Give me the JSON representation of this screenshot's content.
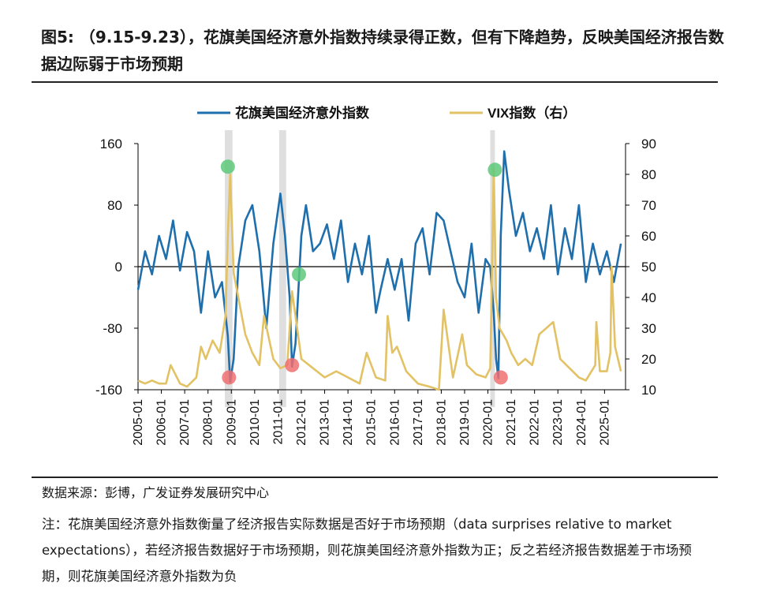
{
  "figure": {
    "title_prefix": "图5:",
    "title_text": "（9.15-9.23），花旗美国经济意外指数持续录得正数，但有下降趋势，反映美国经济报告数据边际弱于市场预期"
  },
  "footer": {
    "source": "数据来源：彭博，广发证券发展研究中心",
    "note": "注：花旗美国经济意外指数衡量了经济报告实际数据是否好于市场预期（data surprises relative to market expectations），若经济报告数据好于市场预期，则花旗美国经济意外指数为正；反之若经济报告数据差于市场预期，则花旗美国经济意外指数为负"
  },
  "chart_data": {
    "type": "line",
    "title": "",
    "xlabel": "",
    "ylabel": "",
    "y2label": "",
    "categories": [
      "2005-01",
      "2006-01",
      "2007-01",
      "2008-01",
      "2009-01",
      "2010-01",
      "2011-01",
      "2012-01",
      "2013-01",
      "2014-01",
      "2015-01",
      "2016-01",
      "2017-01",
      "2018-01",
      "2019-01",
      "2020-01",
      "2021-01",
      "2022-01",
      "2023-01",
      "2024-01",
      "2025-01"
    ],
    "ylim": [
      -160,
      160
    ],
    "yticks": [
      "160",
      "80",
      "0",
      "-80",
      "-160"
    ],
    "y2lim": [
      10,
      90
    ],
    "y2ticks": [
      "90",
      "80",
      "70",
      "60",
      "50",
      "40",
      "30",
      "20",
      "10"
    ],
    "grid": false,
    "legend_position": "top",
    "series": [
      {
        "name": "花旗美国经济意外指数",
        "axis": "left",
        "color": "#1f6fad",
        "x": [
          2005.0,
          2005.3,
          2005.6,
          2005.9,
          2006.2,
          2006.5,
          2006.8,
          2007.1,
          2007.4,
          2007.7,
          2008.0,
          2008.3,
          2008.6,
          2008.85,
          2008.95,
          2009.1,
          2009.3,
          2009.6,
          2009.9,
          2010.2,
          2010.5,
          2010.8,
          2011.1,
          2011.3,
          2011.5,
          2011.6,
          2011.75,
          2012.0,
          2012.2,
          2012.5,
          2012.8,
          2013.1,
          2013.4,
          2013.7,
          2014.0,
          2014.3,
          2014.6,
          2014.9,
          2015.2,
          2015.4,
          2015.7,
          2016.0,
          2016.3,
          2016.6,
          2016.9,
          2017.2,
          2017.5,
          2017.8,
          2018.1,
          2018.4,
          2018.7,
          2019.0,
          2019.3,
          2019.6,
          2019.9,
          2020.1,
          2020.25,
          2020.35,
          2020.45,
          2020.55,
          2020.7,
          2020.9,
          2021.2,
          2021.5,
          2021.8,
          2022.1,
          2022.4,
          2022.7,
          2023.0,
          2023.3,
          2023.6,
          2023.9,
          2024.2,
          2024.5,
          2024.8,
          2025.1,
          2025.4,
          2025.7
        ],
        "values": [
          -30,
          20,
          -10,
          40,
          10,
          60,
          -5,
          45,
          20,
          -60,
          20,
          -40,
          -20,
          -90,
          -150,
          -120,
          0,
          60,
          80,
          20,
          -80,
          30,
          95,
          40,
          -40,
          -130,
          -100,
          40,
          80,
          20,
          30,
          55,
          10,
          60,
          -20,
          30,
          -10,
          40,
          -60,
          -30,
          10,
          -30,
          10,
          -70,
          30,
          50,
          -10,
          70,
          60,
          20,
          -20,
          -40,
          30,
          -60,
          10,
          0,
          -60,
          -120,
          -145,
          40,
          150,
          100,
          40,
          70,
          20,
          50,
          10,
          80,
          -10,
          50,
          10,
          80,
          -20,
          30,
          -10,
          20,
          -20,
          30
        ]
      },
      {
        "name": "VIX指数（右）",
        "axis": "right",
        "color": "#e2c264",
        "x": [
          2005.0,
          2005.3,
          2005.6,
          2005.9,
          2006.2,
          2006.4,
          2006.8,
          2007.1,
          2007.5,
          2007.7,
          2007.9,
          2008.2,
          2008.5,
          2008.75,
          2008.85,
          2008.95,
          2009.1,
          2009.3,
          2009.6,
          2009.9,
          2010.2,
          2010.4,
          2010.8,
          2011.1,
          2011.4,
          2011.6,
          2011.75,
          2012.0,
          2012.5,
          2013.0,
          2013.5,
          2014.0,
          2014.5,
          2014.8,
          2015.2,
          2015.6,
          2015.7,
          2015.9,
          2016.1,
          2016.5,
          2017.0,
          2017.5,
          2017.9,
          2018.1,
          2018.5,
          2018.9,
          2019.1,
          2019.5,
          2019.9,
          2020.1,
          2020.2,
          2020.25,
          2020.35,
          2020.5,
          2020.8,
          2021.0,
          2021.3,
          2021.6,
          2021.9,
          2022.2,
          2022.5,
          2022.8,
          2023.1,
          2023.5,
          2023.9,
          2024.2,
          2024.6,
          2024.65,
          2024.8,
          2025.1,
          2025.25,
          2025.3,
          2025.45,
          2025.7
        ],
        "values": [
          13,
          12,
          13,
          12,
          12,
          18,
          12,
          11,
          14,
          24,
          20,
          26,
          22,
          34,
          60,
          80,
          48,
          40,
          28,
          22,
          18,
          34,
          20,
          17,
          18,
          42,
          34,
          20,
          17,
          14,
          16,
          14,
          12,
          22,
          14,
          13,
          34,
          22,
          24,
          16,
          12,
          11,
          10,
          36,
          14,
          28,
          18,
          15,
          14,
          17,
          60,
          82,
          40,
          30,
          26,
          22,
          18,
          20,
          18,
          28,
          30,
          32,
          20,
          17,
          14,
          13,
          18,
          32,
          16,
          16,
          22,
          50,
          24,
          16
        ]
      }
    ],
    "shaded_periods": [
      {
        "start": 2008.72,
        "end": 2009.05
      },
      {
        "start": 2011.05,
        "end": 2011.35
      },
      {
        "start": 2020.1,
        "end": 2020.3
      }
    ],
    "markers": [
      {
        "x": 2008.85,
        "y": 130,
        "axis": "left",
        "color": "#5ec97a"
      },
      {
        "x": 2008.9,
        "y": -144,
        "axis": "left",
        "color": "#f07070"
      },
      {
        "x": 2011.6,
        "y": -128,
        "axis": "left",
        "color": "#f07070"
      },
      {
        "x": 2011.9,
        "y": -10,
        "axis": "left",
        "color": "#5ec97a"
      },
      {
        "x": 2020.3,
        "y": 126,
        "axis": "left",
        "color": "#5ec97a"
      },
      {
        "x": 2020.55,
        "y": -144,
        "axis": "left",
        "color": "#f07070"
      }
    ]
  }
}
